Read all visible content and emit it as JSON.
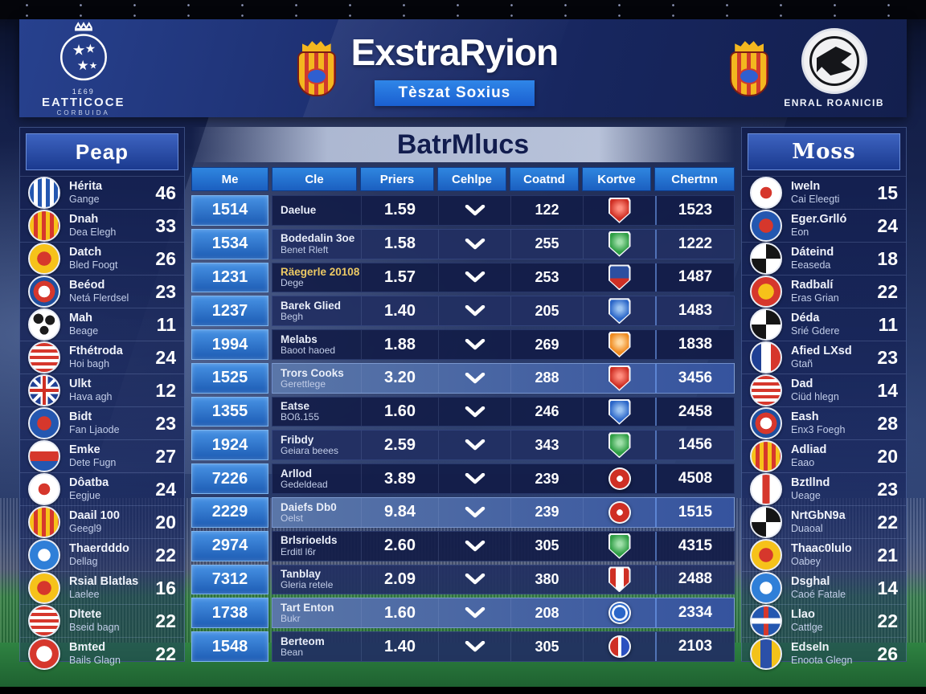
{
  "header": {
    "league_logo": {
      "top": "1£69",
      "main": "EATTICOCE",
      "sub": "CORBUIDA"
    },
    "title": "ExstraRyion",
    "subtitle": "Tèszat Soxius",
    "club_caption": "ENRAL ROANICIB"
  },
  "left_panel": {
    "title": "Peap",
    "rows": [
      {
        "name": "Hérita",
        "sub": "Gange",
        "value": "46",
        "badge": "stripes-bluewhite"
      },
      {
        "name": "Dnah",
        "sub": "Dea Elegh",
        "value": "33",
        "badge": "stripes-yellowred"
      },
      {
        "name": "Datch",
        "sub": "Bled Foogt",
        "value": "26",
        "badge": "yellow-red"
      },
      {
        "name": "Beéod",
        "sub": "Netá Flerdsel",
        "value": "23",
        "badge": "rings-bluered"
      },
      {
        "name": "Mah",
        "sub": "Beage",
        "value": "11",
        "badge": "white-black"
      },
      {
        "name": "Fthétroda",
        "sub": "Hoi bagh",
        "value": "24",
        "badge": "stripes-redwhite-h"
      },
      {
        "name": "Ulkt",
        "sub": "Hava agh",
        "value": "12",
        "badge": "unionjack"
      },
      {
        "name": "Bidt",
        "sub": "Fan Ljaode",
        "value": "23",
        "badge": "blue-red"
      },
      {
        "name": "Emke",
        "sub": "Dete Fugn",
        "value": "27",
        "badge": "tri-wrb"
      },
      {
        "name": "Dôatba",
        "sub": "Eegjue",
        "value": "24",
        "badge": "white-red"
      },
      {
        "name": "Daail 100",
        "sub": "Geegl9",
        "value": "20",
        "badge": "stripes-yellowred"
      },
      {
        "name": "Thaerdddo",
        "sub": "Dellag",
        "value": "22",
        "badge": "blue-white"
      },
      {
        "name": "Rsial Blatlas",
        "sub": "Laelee",
        "value": "16",
        "badge": "yellow-red"
      },
      {
        "name": "Dltete",
        "sub": "Bseid bagn",
        "value": "22",
        "badge": "stripes-redwhite-h"
      },
      {
        "name": "Bmted",
        "sub": "Bails Glagn",
        "value": "22",
        "badge": "red-white"
      }
    ]
  },
  "table": {
    "title": "BatrMlucs",
    "columns": [
      "Me",
      "Cle",
      "Priers",
      "Cehlpe",
      "Coatnd",
      "Kortve",
      "Chertnn"
    ],
    "rows": [
      {
        "me": "1514",
        "name": "Daelue",
        "sub": "",
        "price": "1.59",
        "count": "122",
        "badge": "shield-red",
        "total": "1523",
        "highlight": false,
        "gold": false
      },
      {
        "me": "1534",
        "name": "Bodedalin 3oe",
        "sub": "Benet Rleft",
        "price": "1.58",
        "count": "255",
        "badge": "shield-green",
        "total": "1222",
        "highlight": false,
        "gold": false
      },
      {
        "me": "1231",
        "name": "Räegerle 20108",
        "sub": "Dege",
        "price": "1.57",
        "count": "253",
        "badge": "shield-bluered",
        "total": "1487",
        "highlight": false,
        "gold": true
      },
      {
        "me": "1237",
        "name": "Barek Glied",
        "sub": "Begh",
        "price": "1.40",
        "count": "205",
        "badge": "shield-blue",
        "total": "1483",
        "highlight": false,
        "gold": false
      },
      {
        "me": "1994",
        "name": "Melabs",
        "sub": "Baoot haoed",
        "price": "1.88",
        "count": "269",
        "badge": "shield-orange",
        "total": "1838",
        "highlight": false,
        "gold": false
      },
      {
        "me": "1525",
        "name": "Trors Cooks",
        "sub": "Gerettlege",
        "price": "3.20",
        "count": "288",
        "badge": "shield-red",
        "total": "3456",
        "highlight": true,
        "gold": false
      },
      {
        "me": "1355",
        "name": "Eatse",
        "sub": "BOß.155",
        "price": "1.60",
        "count": "246",
        "badge": "shield-blue",
        "total": "2458",
        "highlight": false,
        "gold": false
      },
      {
        "me": "1924",
        "name": "Fribdy",
        "sub": "Geiara beees",
        "price": "2.59",
        "count": "343",
        "badge": "shield-green",
        "total": "1456",
        "highlight": false,
        "gold": false
      },
      {
        "me": "7226",
        "name": "Arllod",
        "sub": "Gedeldead",
        "price": "3.89",
        "count": "239",
        "badge": "circle-red",
        "total": "4508",
        "highlight": false,
        "gold": false
      },
      {
        "me": "2229",
        "name": "Daiefs Db0",
        "sub": "Oelst",
        "price": "9.84",
        "count": "239",
        "badge": "circle-red",
        "total": "1515",
        "highlight": true,
        "gold": false
      },
      {
        "me": "2974",
        "name": "Brlsrioelds",
        "sub": "Erditl l6r",
        "price": "2.60",
        "count": "305",
        "badge": "shield-green",
        "total": "4315",
        "highlight": false,
        "gold": false
      },
      {
        "me": "7312",
        "name": "Tanblay",
        "sub": "Gleria retele",
        "price": "2.09",
        "count": "380",
        "badge": "shield-redwhite",
        "total": "2488",
        "highlight": false,
        "gold": false
      },
      {
        "me": "1738",
        "name": "Tart Enton",
        "sub": "Bukr",
        "price": "1.60",
        "count": "208",
        "badge": "circle-blue",
        "total": "2334",
        "highlight": true,
        "gold": false
      },
      {
        "me": "1548",
        "name": "Berteom",
        "sub": "Bean",
        "price": "1.40",
        "count": "305",
        "badge": "circle-redblue",
        "total": "2103",
        "highlight": false,
        "gold": false
      }
    ]
  },
  "right_panel": {
    "title": "Moss",
    "rows": [
      {
        "name": "Iweln",
        "sub": "Cai Eleegti",
        "value": "15",
        "badge": "white-red"
      },
      {
        "name": "Eger.Grlló",
        "sub": "Eon",
        "value": "24",
        "badge": "blue-red"
      },
      {
        "name": "Dáteind",
        "sub": "Eeaseda",
        "value": "18",
        "badge": "black-white-q"
      },
      {
        "name": "Radbalí",
        "sub": "Eras Grian",
        "value": "22",
        "badge": "red-yellow"
      },
      {
        "name": "Déda",
        "sub": "Srié Gdere",
        "value": "11",
        "badge": "black-white-q"
      },
      {
        "name": "Afied LXsd",
        "sub": "Gtañ",
        "value": "23",
        "badge": "french"
      },
      {
        "name": "Dad",
        "sub": "Ciüd hlegn",
        "value": "14",
        "badge": "stripes-redwhite-h"
      },
      {
        "name": "Eash",
        "sub": "Enx3 Foegh",
        "value": "28",
        "badge": "rings-bluered"
      },
      {
        "name": "Adliad",
        "sub": "Eaao",
        "value": "20",
        "badge": "stripes-yellowred"
      },
      {
        "name": "Bztllnd",
        "sub": "Ueage",
        "value": "23",
        "badge": "white-redband"
      },
      {
        "name": "NrtGbN9a",
        "sub": "Duaoal",
        "value": "22",
        "badge": "black-white-q"
      },
      {
        "name": "Thaac0lulo",
        "sub": "Oabey",
        "value": "21",
        "badge": "yellow-red"
      },
      {
        "name": "Dsghal",
        "sub": "Caoé Fatale",
        "value": "14",
        "badge": "blue-white"
      },
      {
        "name": "Llao",
        "sub": "Cattlge",
        "value": "22",
        "badge": "blue-cross"
      },
      {
        "name": "Edseln",
        "sub": "Enoota Glegn",
        "value": "26",
        "badge": "shield-yellowblue"
      }
    ]
  },
  "colors": {
    "accent": "#1e74d8",
    "header_blue": "#1b2f70",
    "highlight": "#41639f",
    "gold": "#ecc964",
    "pitch_green": "#2f8342"
  }
}
